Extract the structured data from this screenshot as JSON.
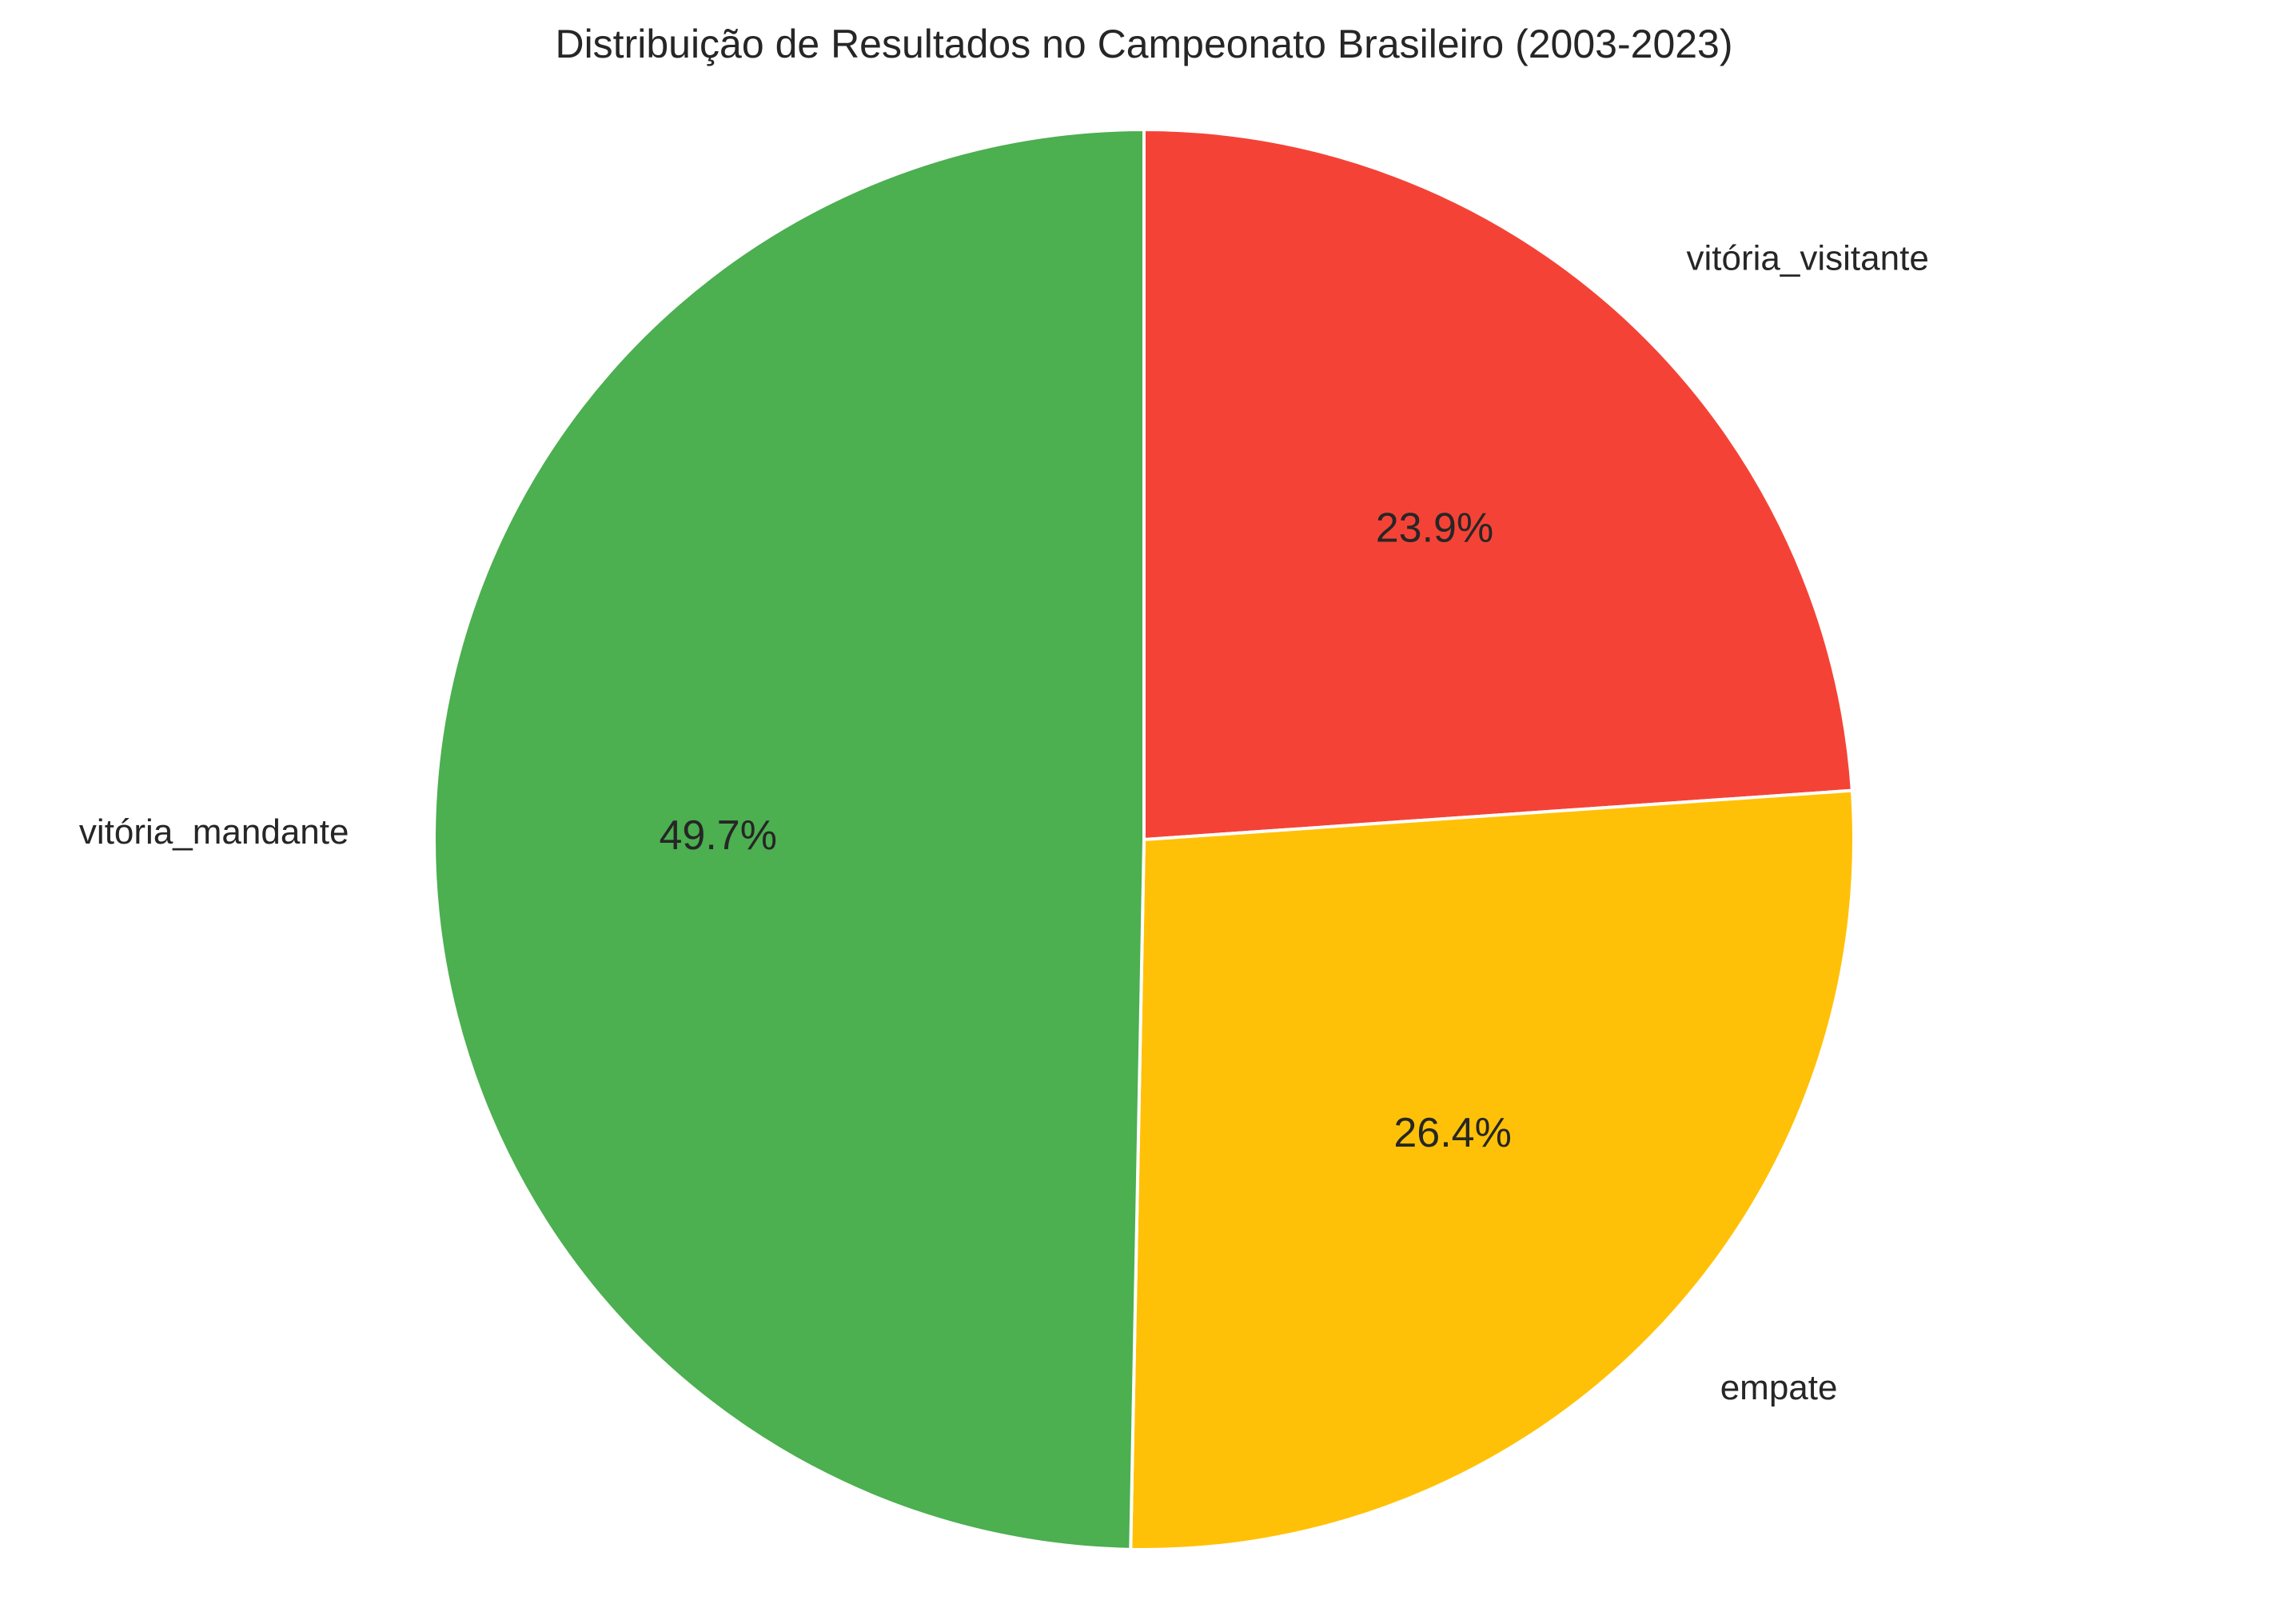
{
  "chart_data": {
    "type": "pie",
    "title": "Distribuição de Resultados no Campeonato Brasileiro (2003-2023)",
    "start_angle_deg": 90,
    "direction": "clockwise",
    "slices": [
      {
        "label": "vitória_visitante",
        "percent": 23.9,
        "percent_label": "23.9%",
        "color": "#F44336"
      },
      {
        "label": "empate",
        "percent": 26.4,
        "percent_label": "26.4%",
        "color": "#FFC107"
      },
      {
        "label": "vitória_mandante",
        "percent": 49.7,
        "percent_label": "49.7%",
        "color": "#4CAF50"
      }
    ]
  }
}
